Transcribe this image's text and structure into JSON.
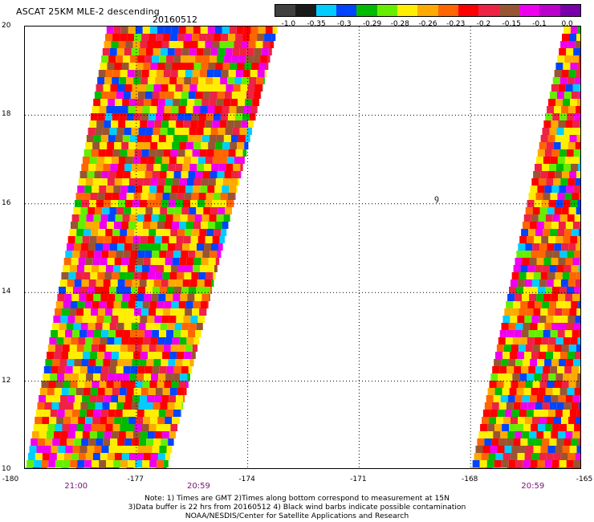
{
  "title": "ASCAT 25KM MLE-2 descending",
  "date": "20160512",
  "colorbar": {
    "tick_labels": [
      "-1.0",
      "-0.35",
      "-0.3",
      "-0.29",
      "-0.28",
      "-0.26",
      "-0.23",
      "-0.2",
      "-0.15",
      "-0.1",
      "0.0"
    ],
    "colors": [
      "#404040",
      "#1a1a1a",
      "#00ccff",
      "#0044ff",
      "#00bb00",
      "#66ee00",
      "#ffee00",
      "#ffaa00",
      "#ff6600",
      "#ff0000",
      "#ee2244",
      "#995533",
      "#ee00ee",
      "#bb00cc",
      "#7700aa"
    ]
  },
  "map": {
    "lat_labels": [
      "20",
      "18",
      "16",
      "14",
      "12",
      "10"
    ],
    "lon_labels": [
      "-180",
      "-177",
      "-174",
      "-171",
      "-168",
      "-165"
    ],
    "lat_range": [
      10,
      20
    ],
    "lon_range": [
      -180,
      -165
    ],
    "swaths": [
      {
        "bottom_left_lon": -180,
        "bottom_right_lon": -176.2,
        "top_left_lon": -177.8,
        "top_right_lon": -173.2,
        "top_lat": 20,
        "time_label": "21:00",
        "time_label_lon": -178.6
      },
      {
        "bottom_left_lon": -168,
        "bottom_right_lon": -165,
        "top_left_lon": -165.5,
        "top_right_lon": -165,
        "top_lat": 20,
        "time_label": "20:59",
        "time_label_lon": -166.3
      }
    ],
    "left_swath_bottom_time": "20:59",
    "left_swath_bottom_time_lon": -175.3,
    "contamination_marker": "ꝯ"
  },
  "notes": [
    "Note: 1) Times are GMT 2)Times along bottom correspond to measurement at 15N",
    "3)Data buffer is 22 hrs from 20160512 4) Black wind barbs indicate possible contamination",
    "NOAA/NESDIS/Center for Satellite Applications and Research"
  ]
}
